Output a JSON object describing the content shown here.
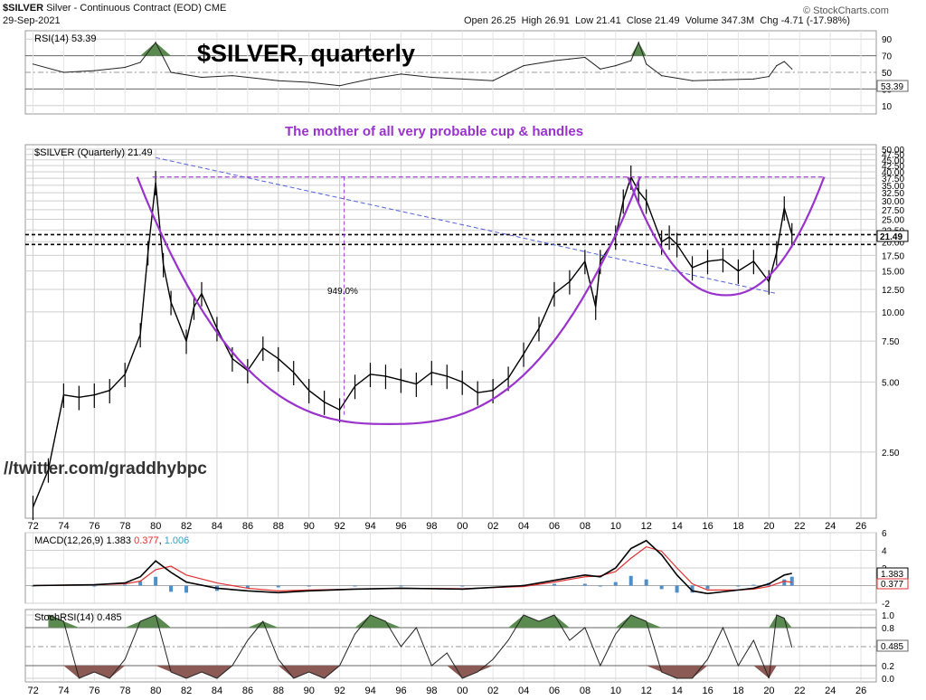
{
  "header": {
    "symbol": "$SILVER",
    "description": "Silver - Continuous Contract (EOD)",
    "exchange": "CME",
    "date": "29-Sep-2021",
    "ohlc": [
      {
        "label": "Open",
        "value": "26.25"
      },
      {
        "label": "High",
        "value": "26.91"
      },
      {
        "label": "Low",
        "value": "21.41"
      },
      {
        "label": "Close",
        "value": "21.49"
      },
      {
        "label": "Volume",
        "value": "347.3M"
      },
      {
        "label": "Chg",
        "value": "-4.71 (-17.98%)"
      }
    ],
    "brand": "© StockCharts.com"
  },
  "annotations": {
    "big_title": "$SILVER, quarterly",
    "subtitle": "The mother of all very probable cup & handles",
    "pct_label": "949.0%",
    "watermark": "//twitter.com/graddhybpc"
  },
  "colors": {
    "purple": "#9933cc",
    "price": "#000000",
    "rsi_fill": "#5a8a50",
    "macd_hist": "#4f8fc8",
    "macd_signal": "#e03030",
    "stoch_low_fill": "#8b5a55",
    "grid": "#cfcfcf"
  },
  "chart_data": [
    {
      "type": "line",
      "panel": "RSI",
      "legend": "RSI(14) 53.39",
      "last_value_label": "53.39",
      "ylim": [
        0,
        100
      ],
      "y_ticks": [
        "90",
        "70",
        "50",
        "30",
        "10"
      ],
      "x": [
        1972,
        1974,
        1976,
        1978,
        1979,
        1980,
        1981,
        1983,
        1985,
        1988,
        1990,
        1992,
        1994,
        1996,
        1998,
        2000,
        2002,
        2004,
        2006,
        2007,
        2008,
        2009,
        2010,
        2011,
        2011.5,
        2012,
        2013,
        2015,
        2017,
        2019,
        2020,
        2020.5,
        2021,
        2021.5
      ],
      "values": [
        60,
        50,
        52,
        56,
        62,
        86,
        50,
        44,
        46,
        40,
        38,
        34,
        42,
        48,
        44,
        42,
        40,
        58,
        64,
        66,
        68,
        54,
        58,
        64,
        86,
        60,
        46,
        40,
        41,
        42,
        45,
        58,
        63,
        54
      ]
    },
    {
      "type": "line",
      "panel": "Price",
      "legend": "$SILVER (Quarterly) 21.49",
      "last_value_label": "21.49",
      "log_scale": true,
      "ylim": [
        1.3,
        50
      ],
      "y_ticks": [
        "50.00",
        "47.50",
        "45.00",
        "42.50",
        "40.00",
        "37.50",
        "35.00",
        "32.50",
        "30.00",
        "27.50",
        "25.00",
        "22.50",
        "20.00",
        "17.50",
        "15.00",
        "12.50",
        "10.00",
        "7.50",
        "5.00",
        "2.50"
      ],
      "x_ticks": [
        "72",
        "74",
        "76",
        "78",
        "80",
        "82",
        "84",
        "86",
        "88",
        "90",
        "92",
        "94",
        "96",
        "98",
        "00",
        "02",
        "04",
        "06",
        "08",
        "10",
        "12",
        "14",
        "16",
        "18",
        "20",
        "22",
        "24",
        "26"
      ],
      "x": [
        1972,
        1973,
        1974,
        1975,
        1976,
        1977,
        1978,
        1979,
        1979.5,
        1980,
        1980.5,
        1981,
        1982,
        1982.5,
        1983,
        1984,
        1985,
        1986,
        1987,
        1988,
        1989,
        1990,
        1991,
        1992,
        1993,
        1994,
        1995,
        1996,
        1997,
        1998,
        1999,
        2000,
        2001,
        2002,
        2003,
        2004,
        2005,
        2006,
        2007,
        2008,
        2008.7,
        2009,
        2010,
        2010.5,
        2011,
        2011.5,
        2012,
        2013,
        2013.5,
        2014,
        2015,
        2016,
        2017,
        2018,
        2019,
        2020,
        2020.5,
        2021,
        2021.5
      ],
      "values": [
        1.45,
        2.1,
        4.4,
        4.3,
        4.4,
        4.6,
        5.4,
        8.0,
        18.0,
        36.0,
        16.0,
        11.0,
        7.5,
        10.5,
        12.0,
        8.5,
        6.3,
        5.6,
        7.0,
        6.3,
        5.5,
        4.6,
        4.1,
        3.8,
        4.8,
        5.4,
        5.3,
        5.1,
        4.9,
        5.5,
        5.3,
        5.0,
        4.5,
        4.6,
        5.2,
        6.6,
        8.5,
        12.0,
        13.5,
        16.5,
        10.5,
        16.5,
        21.0,
        30.0,
        38.0,
        33.0,
        30.0,
        20.0,
        21.0,
        19.5,
        15.5,
        16.5,
        16.8,
        15.0,
        16.5,
        13.5,
        18.0,
        28.0,
        21.49
      ]
    },
    {
      "type": "line",
      "panel": "MACD",
      "legend": "MACD(12,26,9)",
      "legend_values": [
        "1.383",
        "0.377",
        "1.006"
      ],
      "series_values_labels": {
        "macd": "1.383",
        "signal": "0.377"
      },
      "ylim": [
        -2,
        6
      ],
      "y_ticks": [
        "6",
        "4",
        "2",
        "0",
        "-2"
      ],
      "x": [
        1972,
        1976,
        1978,
        1979,
        1980,
        1981,
        1982,
        1984,
        1986,
        1988,
        1990,
        1993,
        1996,
        2000,
        2004,
        2006,
        2008,
        2009,
        2010,
        2011,
        2012,
        2013,
        2014,
        2015,
        2016,
        2018,
        2019,
        2020,
        2021,
        2021.5
      ],
      "macd": [
        0,
        0.1,
        0.3,
        1.0,
        2.8,
        1.5,
        0.4,
        -0.3,
        -0.6,
        -0.8,
        -0.6,
        -0.4,
        -0.3,
        -0.4,
        0.0,
        0.6,
        1.2,
        1.0,
        2.0,
        4.2,
        5.1,
        3.5,
        1.2,
        -0.6,
        -0.9,
        -0.5,
        -0.3,
        0.2,
        1.2,
        1.383
      ],
      "signal": [
        0,
        0.1,
        0.2,
        0.5,
        1.8,
        2.2,
        1.2,
        0.3,
        -0.3,
        -0.6,
        -0.5,
        -0.4,
        -0.3,
        -0.35,
        -0.1,
        0.4,
        1.0,
        1.1,
        1.6,
        3.1,
        4.4,
        3.9,
        2.0,
        0.2,
        -0.5,
        -0.5,
        -0.4,
        -0.1,
        0.5,
        0.377
      ]
    },
    {
      "type": "line",
      "panel": "StochRSI",
      "legend": "StochRSI(14) 0.485",
      "last_value_label": "0.485",
      "ylim": [
        0,
        1
      ],
      "y_ticks": [
        "1.0",
        "0.8",
        "0.5",
        "0.2",
        "0.0"
      ],
      "x": [
        1973,
        1974,
        1975,
        1976,
        1977,
        1978,
        1979,
        1980,
        1981,
        1982,
        1983,
        1984,
        1985,
        1986,
        1987,
        1988,
        1989,
        1990,
        1991,
        1992,
        1993,
        1994,
        1995,
        1996,
        1997,
        1998,
        1999,
        2000,
        2001,
        2002,
        2003,
        2004,
        2005,
        2006,
        2007,
        2008,
        2009,
        2010,
        2011,
        2012,
        2013,
        2014,
        2015,
        2016,
        2017,
        2018,
        2019,
        2020,
        2020.5,
        2021,
        2021.5
      ],
      "values": [
        1.0,
        0.9,
        0.0,
        0.1,
        0.0,
        0.3,
        0.9,
        1.0,
        0.1,
        0.0,
        0.1,
        0.0,
        0.2,
        0.6,
        0.9,
        0.3,
        0.0,
        0.1,
        0.0,
        0.2,
        0.7,
        1.0,
        0.9,
        0.5,
        0.8,
        0.2,
        0.4,
        0.0,
        0.1,
        0.3,
        0.6,
        1.0,
        0.9,
        1.0,
        0.6,
        0.8,
        0.2,
        0.7,
        1.0,
        0.9,
        0.1,
        0.0,
        0.0,
        0.3,
        0.8,
        0.2,
        0.6,
        0.0,
        1.0,
        0.95,
        0.485
      ]
    }
  ]
}
